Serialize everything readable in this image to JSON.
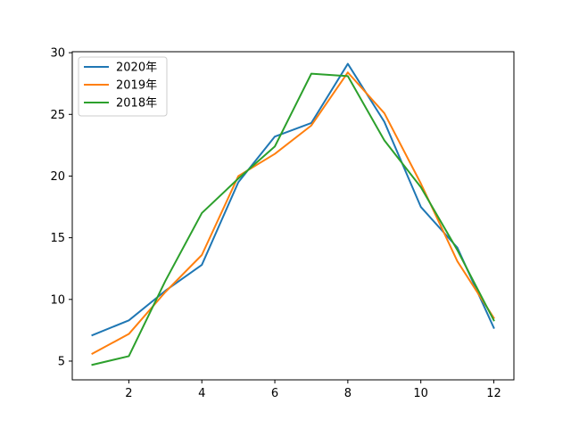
{
  "chart_data": {
    "type": "line",
    "title": "",
    "xlabel": "",
    "ylabel": "",
    "xlim": [
      0.45,
      12.55
    ],
    "ylim": [
      3.48,
      30.08
    ],
    "xticks": [
      2,
      4,
      6,
      8,
      10,
      12
    ],
    "yticks": [
      5,
      10,
      15,
      20,
      25,
      30
    ],
    "grid": false,
    "legend_position": "top-left",
    "x": [
      1,
      2,
      3,
      4,
      5,
      6,
      7,
      8,
      9,
      10,
      11,
      12
    ],
    "series": [
      {
        "name": "2020年",
        "color": "#1f77b4",
        "values": [
          7.1,
          8.3,
          10.7,
          12.8,
          19.5,
          23.2,
          24.3,
          29.1,
          24.4,
          17.5,
          14.2,
          7.7
        ]
      },
      {
        "name": "2019年",
        "color": "#ff7f0e",
        "values": [
          5.6,
          7.2,
          10.6,
          13.6,
          20.0,
          21.8,
          24.1,
          28.4,
          25.1,
          19.4,
          13.1,
          8.5
        ]
      },
      {
        "name": "2018年",
        "color": "#2ca02c",
        "values": [
          4.7,
          5.4,
          11.5,
          17.0,
          19.8,
          22.4,
          28.3,
          28.1,
          22.9,
          19.1,
          14.0,
          8.3
        ]
      }
    ]
  }
}
